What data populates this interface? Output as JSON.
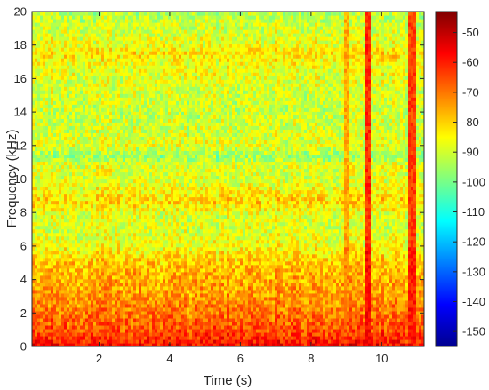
{
  "chart_data": {
    "type": "heatmap",
    "title": "",
    "xlabel": "Time (s)",
    "ylabel": "Frequency (kHz)",
    "xlim": [
      0.1,
      11.2
    ],
    "ylim": [
      0,
      20
    ],
    "x_ticks": [
      2,
      4,
      6,
      8,
      10
    ],
    "x_tick_labels": [
      "2",
      "4",
      "6",
      "8",
      "10"
    ],
    "y_ticks": [
      0,
      2,
      4,
      6,
      8,
      10,
      12,
      14,
      16,
      18,
      20
    ],
    "y_tick_labels": [
      "0",
      "2",
      "4",
      "6",
      "8",
      "10",
      "12",
      "14",
      "16",
      "18",
      "20"
    ],
    "colorbar": {
      "min": -155,
      "max": -43,
      "colormap": "jet",
      "ticks": [
        -50,
        -60,
        -70,
        -80,
        -90,
        -100,
        -110,
        -120,
        -130,
        -140,
        -150
      ],
      "tick_labels": [
        "-50",
        "-60",
        "-70",
        "-80",
        "-90",
        "-100",
        "-110",
        "-120",
        "-130",
        "-140",
        "-150"
      ]
    },
    "power_profile_db": {
      "frequency_khz": [
        0,
        0.5,
        1,
        2,
        3,
        4,
        5,
        6,
        7,
        8,
        8.7,
        9,
        10,
        11,
        11.3,
        12,
        13,
        14,
        15,
        16,
        17,
        17.5,
        18,
        19,
        20
      ],
      "mean_power_db": [
        -56,
        -62,
        -66,
        -70,
        -74,
        -76,
        -79,
        -86,
        -89,
        -88,
        -80,
        -83,
        -89,
        -88,
        -97,
        -88,
        -90,
        -91,
        -90,
        -88,
        -86,
        -82,
        -87,
        -90,
        -93
      ]
    },
    "broadband_events": [
      {
        "time_s": 9.0,
        "level_db": -72
      },
      {
        "time_s": 9.6,
        "level_db": -58
      },
      {
        "time_s": 10.85,
        "level_db": -60
      }
    ],
    "grid": false
  }
}
